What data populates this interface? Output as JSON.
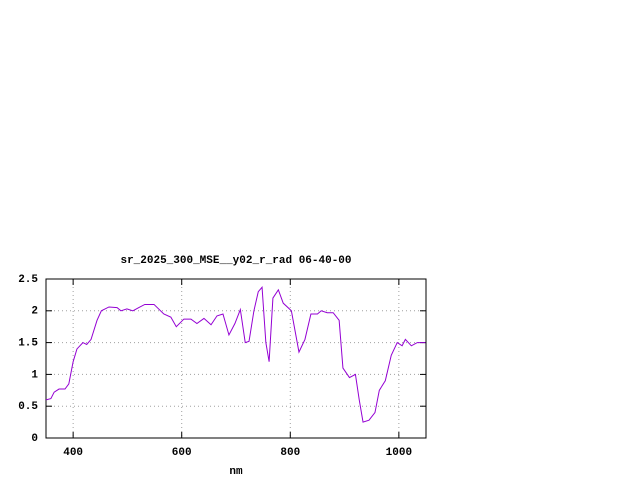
{
  "chart_data": {
    "type": "line",
    "title": "sr_2025_300_MSE__y02_r_rad 06-40-00",
    "x_label": "nm",
    "x": [
      350,
      359,
      365,
      374,
      385,
      392,
      400,
      407,
      418,
      425,
      433,
      444,
      452,
      466,
      481,
      488,
      499,
      510,
      521,
      532,
      549,
      567,
      580,
      590,
      604,
      617,
      628,
      641,
      654,
      665,
      676,
      687,
      698,
      708,
      717,
      724,
      733,
      741,
      748,
      755,
      761,
      768,
      778,
      787,
      802,
      816,
      827,
      838,
      850,
      857,
      868,
      879,
      890,
      897,
      909,
      920,
      927,
      934,
      945,
      956,
      964,
      975,
      986,
      997,
      1006,
      1012,
      1023,
      1034,
      1049
    ],
    "series": [
      {
        "color": "#9400d3",
        "values": [
          0.6,
          0.62,
          0.72,
          0.77,
          0.77,
          0.85,
          1.2,
          1.4,
          1.5,
          1.47,
          1.55,
          1.85,
          2.0,
          2.06,
          2.05,
          2.0,
          2.03,
          2.0,
          2.05,
          2.1,
          2.1,
          1.95,
          1.9,
          1.75,
          1.87,
          1.87,
          1.8,
          1.88,
          1.78,
          1.92,
          1.95,
          1.62,
          1.8,
          2.02,
          1.5,
          1.52,
          2.0,
          2.3,
          2.37,
          1.5,
          1.2,
          2.2,
          2.33,
          2.12,
          2.0,
          1.35,
          1.55,
          1.95,
          1.95,
          2.0,
          1.97,
          1.97,
          1.85,
          1.1,
          0.95,
          1.0,
          0.6,
          0.25,
          0.28,
          0.4,
          0.75,
          0.9,
          1.3,
          1.5,
          1.45,
          1.55,
          1.45,
          1.5,
          1.5
        ]
      }
    ],
    "xlim": [
      350,
      1050
    ],
    "ylim": [
      0,
      2.5
    ],
    "xticks": [
      400,
      600,
      800,
      1000
    ],
    "yticks": [
      0,
      0.5,
      1,
      1.5,
      2,
      2.5
    ],
    "grid": true
  }
}
